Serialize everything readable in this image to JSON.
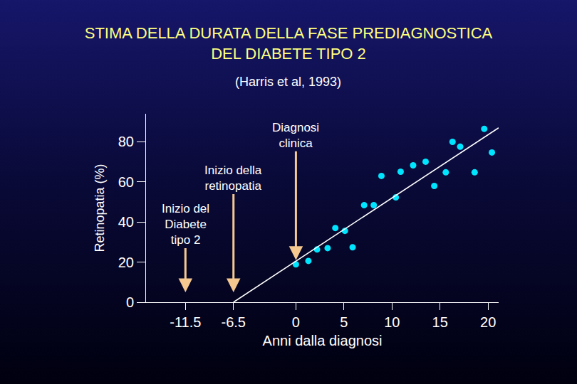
{
  "chart_data": {
    "type": "scatter",
    "title": "STIMA DELLA DURATA DELLA FASE PREDIAGNOSTICA\nDEL DIABETE TIPO 2",
    "subtitle": "(Harris et al, 1993)",
    "x_label": "Anni dalla diagnosi",
    "y_label": "Retinopatia (%)",
    "xlim": [
      -15.6,
      21.1
    ],
    "ylim": [
      0,
      94
    ],
    "xticks": [
      -11.5,
      -6.5,
      0,
      5,
      10,
      15,
      20
    ],
    "yticks": [
      0,
      20,
      40,
      60,
      80
    ],
    "grid": false,
    "series": [
      {
        "type": "scatter",
        "color": "#00e5ff",
        "marker": "circle",
        "x": [
          0,
          1.3,
          2.2,
          3.3,
          4.1,
          5.1,
          5.9,
          7.1,
          8.1,
          8.9,
          10.4,
          10.9,
          12.2,
          13.5,
          14.4,
          15.6,
          16.3,
          17.1,
          18.6,
          19.6,
          20.4
        ],
        "values": [
          18.9,
          20.6,
          26.3,
          27,
          37,
          35.6,
          27.4,
          48.4,
          48.4,
          63,
          52.3,
          65.1,
          68.3,
          70.1,
          58,
          64.8,
          80,
          77.6,
          64.8,
          86.5,
          74.7
        ]
      },
      {
        "type": "line",
        "color": "#ffffff",
        "line_style": "solid",
        "x": [
          -6.5,
          21.1
        ],
        "values": [
          0,
          87
        ]
      }
    ],
    "annotations": [
      {
        "text": "Diagnosi\nclinica",
        "x": 0,
        "y": 21,
        "color": "#f5c890"
      },
      {
        "text": "Inizio della\nretinopatia",
        "x": -6.5,
        "y": 5,
        "color": "#f5c890"
      },
      {
        "text": "Inizio del\nDiabete\ntipo 2",
        "x": -11.5,
        "y": 5,
        "color": "#f5c890"
      }
    ]
  }
}
